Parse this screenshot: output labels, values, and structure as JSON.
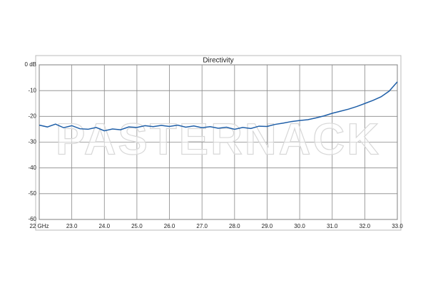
{
  "chart_data": {
    "type": "line",
    "title": "Directivity",
    "watermark": "PASTERNACK",
    "x": [
      22,
      22.25,
      22.5,
      22.75,
      23,
      23.25,
      23.5,
      23.75,
      24,
      24.25,
      24.5,
      24.75,
      25,
      25.25,
      25.5,
      25.75,
      26,
      26.25,
      26.5,
      26.75,
      27,
      27.25,
      27.5,
      27.75,
      28,
      28.25,
      28.5,
      28.75,
      29,
      29.25,
      29.5,
      29.75,
      30,
      30.25,
      30.5,
      30.75,
      31,
      31.25,
      31.5,
      31.75,
      32,
      32.25,
      32.5,
      32.75,
      33
    ],
    "series": [
      {
        "name": "Directivity",
        "color": "#1f5fa8",
        "values": [
          -23.4,
          -24.1,
          -23.0,
          -24.4,
          -23.6,
          -24.8,
          -25.0,
          -24.3,
          -25.6,
          -24.9,
          -25.2,
          -24.1,
          -24.3,
          -23.6,
          -24.0,
          -23.5,
          -23.9,
          -23.4,
          -24.2,
          -23.7,
          -24.4,
          -24.0,
          -24.6,
          -24.2,
          -25.0,
          -24.3,
          -24.7,
          -23.8,
          -23.9,
          -23.1,
          -22.6,
          -22.0,
          -21.6,
          -21.3,
          -20.6,
          -19.8,
          -18.8,
          -18.0,
          -17.2,
          -16.2,
          -15.0,
          -13.8,
          -12.4,
          -10.2,
          -6.6
        ]
      }
    ],
    "xlim": [
      22,
      33
    ],
    "xticks": [
      {
        "value": 22,
        "label": "22 GHz"
      },
      {
        "value": 23,
        "label": "23.0"
      },
      {
        "value": 24,
        "label": "24.0"
      },
      {
        "value": 25,
        "label": "25.0"
      },
      {
        "value": 26,
        "label": "26.0"
      },
      {
        "value": 27,
        "label": "27.0"
      },
      {
        "value": 28,
        "label": "28.0"
      },
      {
        "value": 29,
        "label": "29.0"
      },
      {
        "value": 30,
        "label": "30.0"
      },
      {
        "value": 31,
        "label": "31.0"
      },
      {
        "value": 32,
        "label": "32.0"
      },
      {
        "value": 33,
        "label": "33.0"
      }
    ],
    "ylim": [
      -60,
      0
    ],
    "yticks": [
      {
        "value": 0,
        "label": "0 dB"
      },
      -10,
      -20,
      -30,
      -40,
      -50,
      -60
    ],
    "grid": true
  }
}
